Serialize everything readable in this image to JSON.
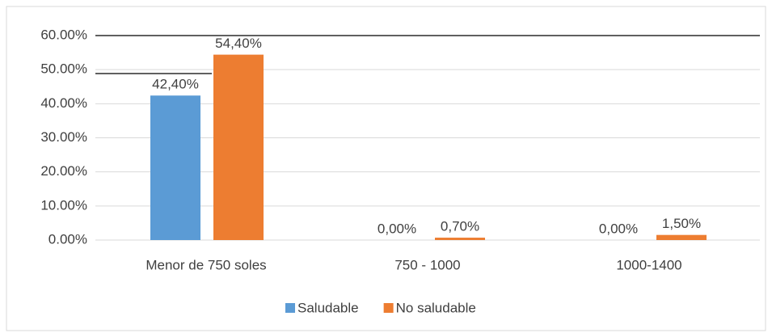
{
  "chart_data": {
    "type": "bar",
    "categories": [
      "Menor de 750 soles",
      "750 - 1000",
      "1000-1400"
    ],
    "series": [
      {
        "name": "Saludable",
        "color": "#5b9bd5",
        "values": [
          42.4,
          0,
          0
        ],
        "value_labels": [
          "42,40%",
          "0,00%",
          "0,00%"
        ]
      },
      {
        "name": "No saludable",
        "color": "#ed7d31",
        "values": [
          54.4,
          0.7,
          1.5
        ],
        "value_labels": [
          "54,40%",
          "0,70%",
          "1,50%"
        ]
      }
    ],
    "ylim": [
      0,
      60
    ],
    "yticks": [
      {
        "value": 0,
        "label": "0.00%"
      },
      {
        "value": 10,
        "label": "10.00%"
      },
      {
        "value": 20,
        "label": "20.00%"
      },
      {
        "value": 30,
        "label": "30.00%"
      },
      {
        "value": 40,
        "label": "40.00%"
      },
      {
        "value": 50,
        "label": "50.00%"
      },
      {
        "value": 60,
        "label": "60.00%"
      }
    ],
    "grid": true,
    "legend": "bottom"
  }
}
